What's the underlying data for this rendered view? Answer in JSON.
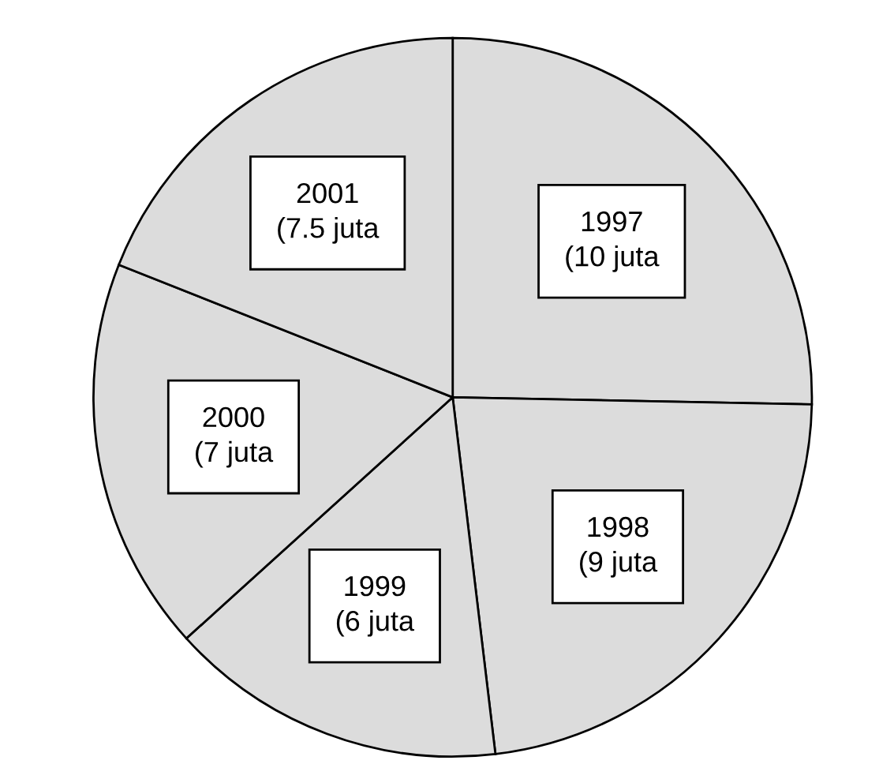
{
  "chart_data": {
    "type": "pie",
    "categories": [
      "1997",
      "1998",
      "1999",
      "2000",
      "2001"
    ],
    "values": [
      10,
      9,
      6,
      7,
      7.5
    ],
    "value_labels": [
      "(10 juta",
      "(9 juta",
      "(6 juta",
      "(7 juta",
      "(7.5 juta"
    ],
    "colors": [
      "#dcdcdc",
      "#dcdcdc",
      "#dcdcdc",
      "#dcdcdc",
      "#dcdcdc"
    ],
    "legend": false
  }
}
